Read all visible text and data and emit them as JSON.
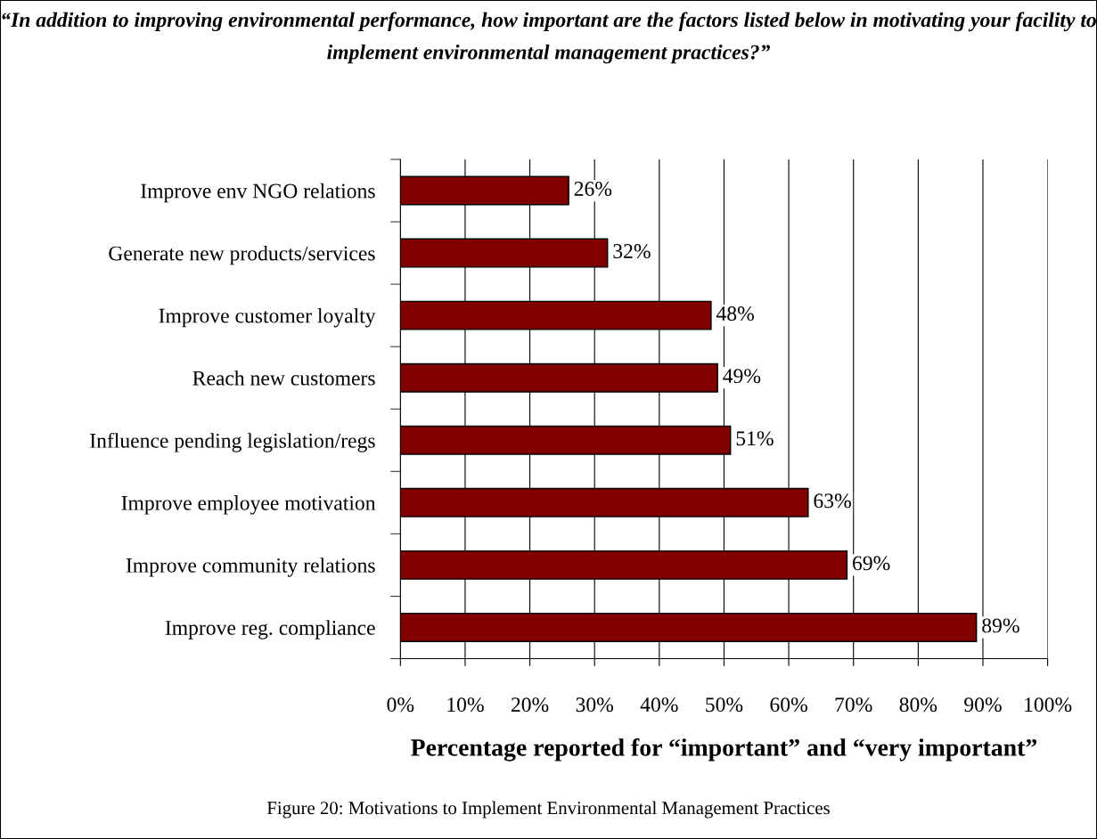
{
  "chart_data": {
    "type": "bar",
    "orientation": "horizontal",
    "title": "“In addition to improving environmental performance, how important are the factors listed below in motivating your facility to implement environmental management practices?”",
    "xlabel": "Percentage reported for “important” and “very important”",
    "categories": [
      "Improve env NGO relations",
      "Generate new products/services",
      "Improve customer loyalty",
      "Reach new customers",
      "Influence pending legislation/regs",
      "Improve employee motivation",
      "Improve community relations",
      "Improve reg. compliance"
    ],
    "values": [
      26,
      32,
      48,
      49,
      51,
      63,
      69,
      89
    ],
    "value_labels": [
      "26%",
      "32%",
      "48%",
      "49%",
      "51%",
      "63%",
      "69%",
      "89%"
    ],
    "color": "#800000",
    "xlim": [
      0,
      100
    ],
    "xticks": [
      {
        "value": 0,
        "label": "0%"
      },
      {
        "value": 10,
        "label": "10%"
      },
      {
        "value": 20,
        "label": "20%"
      },
      {
        "value": 30,
        "label": "30%"
      },
      {
        "value": 40,
        "label": "40%"
      },
      {
        "value": 50,
        "label": "50%"
      },
      {
        "value": 60,
        "label": "60%"
      },
      {
        "value": 70,
        "label": "70%"
      },
      {
        "value": 80,
        "label": "80%"
      },
      {
        "value": 90,
        "label": "90%"
      },
      {
        "value": 100,
        "label": "100%"
      }
    ],
    "grid": "x",
    "legend": false,
    "annotations": [
      "Figure 20: Motivations to Implement Environmental Management Practices"
    ]
  }
}
